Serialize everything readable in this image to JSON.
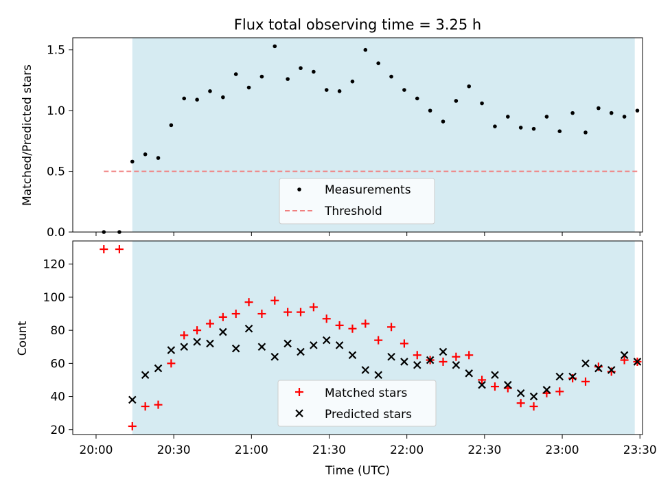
{
  "chart_data": [
    {
      "type": "scatter",
      "title": "Flux total observing time = 3.25 h",
      "xlabel": "",
      "ylabel": "Matched/Predicted stars",
      "xlim": [
        "19:51",
        "23:31"
      ],
      "ylim": [
        0,
        1.6
      ],
      "yticks": [
        "0.0",
        "0.5",
        "1.0",
        "1.5"
      ],
      "grid": false,
      "legend": "lower-center",
      "shaded_interval": [
        "20:14",
        "23:28"
      ],
      "shade_color": "#add8e6",
      "series": [
        {
          "name": "Measurements",
          "marker": "dot",
          "color": "#000000",
          "x": [
            "20:03",
            "20:09",
            "20:14",
            "20:19",
            "20:24",
            "20:29",
            "20:34",
            "20:39",
            "20:44",
            "20:49",
            "20:54",
            "20:59",
            "21:04",
            "21:09",
            "21:14",
            "21:19",
            "21:24",
            "21:29",
            "21:34",
            "21:39",
            "21:44",
            "21:49",
            "21:54",
            "21:59",
            "22:04",
            "22:09",
            "22:14",
            "22:19",
            "22:24",
            "22:29",
            "22:34",
            "22:39",
            "22:44",
            "22:49",
            "22:54",
            "22:59",
            "23:04",
            "23:09",
            "23:14",
            "23:19",
            "23:24",
            "23:29"
          ],
          "y": [
            0.0,
            0.0,
            0.58,
            0.64,
            0.61,
            0.88,
            1.1,
            1.09,
            1.16,
            1.11,
            1.3,
            1.19,
            1.28,
            1.53,
            1.26,
            1.35,
            1.32,
            1.17,
            1.16,
            1.24,
            1.5,
            1.39,
            1.28,
            1.17,
            1.1,
            1.0,
            0.91,
            1.08,
            1.2,
            1.06,
            0.87,
            0.95,
            0.86,
            0.85,
            0.95,
            0.83,
            0.98,
            0.82,
            1.02,
            0.98,
            0.95,
            1.0
          ]
        },
        {
          "name": "Threshold",
          "marker": "dashed-line",
          "color": "#f08080",
          "x": [
            "20:03",
            "23:29"
          ],
          "y": [
            0.5,
            0.5
          ]
        }
      ]
    },
    {
      "type": "scatter",
      "title": "",
      "xlabel": "Time (UTC)",
      "ylabel": "Count",
      "xlim": [
        "19:51",
        "23:31"
      ],
      "ylim": [
        17,
        134
      ],
      "yticks": [
        "20",
        "40",
        "60",
        "80",
        "100",
        "120"
      ],
      "xticks": [
        "20:00",
        "20:30",
        "21:00",
        "21:30",
        "22:00",
        "22:30",
        "23:00",
        "23:30"
      ],
      "grid": false,
      "legend": "lower-center",
      "shaded_interval": [
        "20:14",
        "23:28"
      ],
      "shade_color": "#add8e6",
      "series": [
        {
          "name": "Matched stars",
          "marker": "plus",
          "color": "#ff0000",
          "x": [
            "20:03",
            "20:09",
            "20:14",
            "20:19",
            "20:24",
            "20:29",
            "20:34",
            "20:39",
            "20:44",
            "20:49",
            "20:54",
            "20:59",
            "21:04",
            "21:09",
            "21:14",
            "21:19",
            "21:24",
            "21:29",
            "21:34",
            "21:39",
            "21:44",
            "21:49",
            "21:54",
            "21:59",
            "22:04",
            "22:09",
            "22:14",
            "22:19",
            "22:24",
            "22:29",
            "22:34",
            "22:39",
            "22:44",
            "22:49",
            "22:54",
            "22:59",
            "23:04",
            "23:09",
            "23:14",
            "23:19",
            "23:24",
            "23:29"
          ],
          "y": [
            129,
            129,
            22,
            34,
            35,
            60,
            77,
            80,
            84,
            88,
            90,
            97,
            90,
            98,
            91,
            91,
            94,
            87,
            83,
            81,
            84,
            74,
            82,
            72,
            65,
            62,
            61,
            64,
            65,
            50,
            46,
            45,
            36,
            34,
            42,
            43,
            51,
            49,
            58,
            55,
            62,
            61
          ]
        },
        {
          "name": "Predicted stars",
          "marker": "x",
          "color": "#000000",
          "x": [
            "20:14",
            "20:19",
            "20:24",
            "20:29",
            "20:34",
            "20:39",
            "20:44",
            "20:49",
            "20:54",
            "20:59",
            "21:04",
            "21:09",
            "21:14",
            "21:19",
            "21:24",
            "21:29",
            "21:34",
            "21:39",
            "21:44",
            "21:49",
            "21:54",
            "21:59",
            "22:04",
            "22:09",
            "22:14",
            "22:19",
            "22:24",
            "22:29",
            "22:34",
            "22:39",
            "22:44",
            "22:49",
            "22:54",
            "22:59",
            "23:04",
            "23:09",
            "23:14",
            "23:19",
            "23:24",
            "23:29"
          ],
          "y": [
            38,
            53,
            57,
            68,
            70,
            73,
            72,
            79,
            69,
            81,
            70,
            64,
            72,
            67,
            71,
            74,
            71,
            65,
            56,
            53,
            64,
            61,
            59,
            62,
            67,
            59,
            54,
            47,
            53,
            47,
            42,
            40,
            44,
            52,
            52,
            60,
            57,
            56,
            65,
            61
          ]
        }
      ]
    }
  ]
}
